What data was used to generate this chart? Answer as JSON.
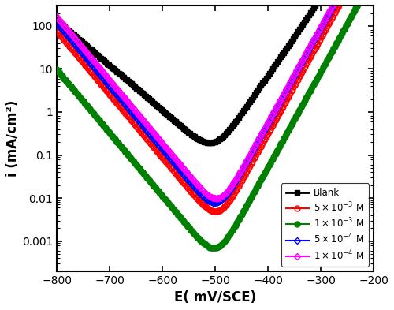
{
  "xlabel": "E( mV/SCE)",
  "ylabel": "i (mA/cm²)",
  "xlim": [
    -800,
    -200
  ],
  "ylim": [
    0.0002,
    300
  ],
  "xticks": [
    -800,
    -700,
    -600,
    -500,
    -400,
    -300,
    -200
  ],
  "yticks": [
    0.001,
    0.01,
    0.1,
    1,
    10,
    100
  ],
  "ytick_labels": [
    "0.001",
    "0.01",
    "0.1",
    "1",
    "10",
    "100"
  ],
  "colors": [
    "#000000",
    "#ff0000",
    "#008000",
    "#0000ff",
    "#ff00ff"
  ],
  "labels": [
    "Blank",
    "$5\\times10^{-3}$ M",
    "$1\\times10^{-3}$ M",
    "$5\\times10^{-4}$ M",
    "$1\\times10^{-4}$ M"
  ],
  "series": [
    {
      "Ecorr": -502,
      "Icorr": 0.1,
      "ba": 55,
      "bc": 95,
      "marker": "s",
      "mfc": "black",
      "mec": "black",
      "lw": 2.0,
      "ms": 5,
      "mi": 15
    },
    {
      "Ecorr": -495,
      "Icorr": 0.0025,
      "ba": 45,
      "bc": 68,
      "marker": "o",
      "mfc": "none",
      "mec": "#ff0000",
      "lw": 1.5,
      "ms": 5,
      "mi": 10
    },
    {
      "Ecorr": -498,
      "Icorr": 0.00035,
      "ba": 45,
      "bc": 68,
      "marker": "o",
      "mfc": "#008000",
      "mec": "#008000",
      "lw": 1.5,
      "ms": 5,
      "mi": 10
    },
    {
      "Ecorr": -496,
      "Icorr": 0.004,
      "ba": 45,
      "bc": 68,
      "marker": "D",
      "mfc": "none",
      "mec": "#0000ff",
      "lw": 1.5,
      "ms": 4,
      "mi": 10
    },
    {
      "Ecorr": -493,
      "Icorr": 0.005,
      "ba": 45,
      "bc": 68,
      "marker": "D",
      "mfc": "none",
      "mec": "#ff00ff",
      "lw": 1.5,
      "ms": 4,
      "mi": 10
    }
  ],
  "figsize": [
    5.0,
    3.93
  ],
  "dpi": 100
}
